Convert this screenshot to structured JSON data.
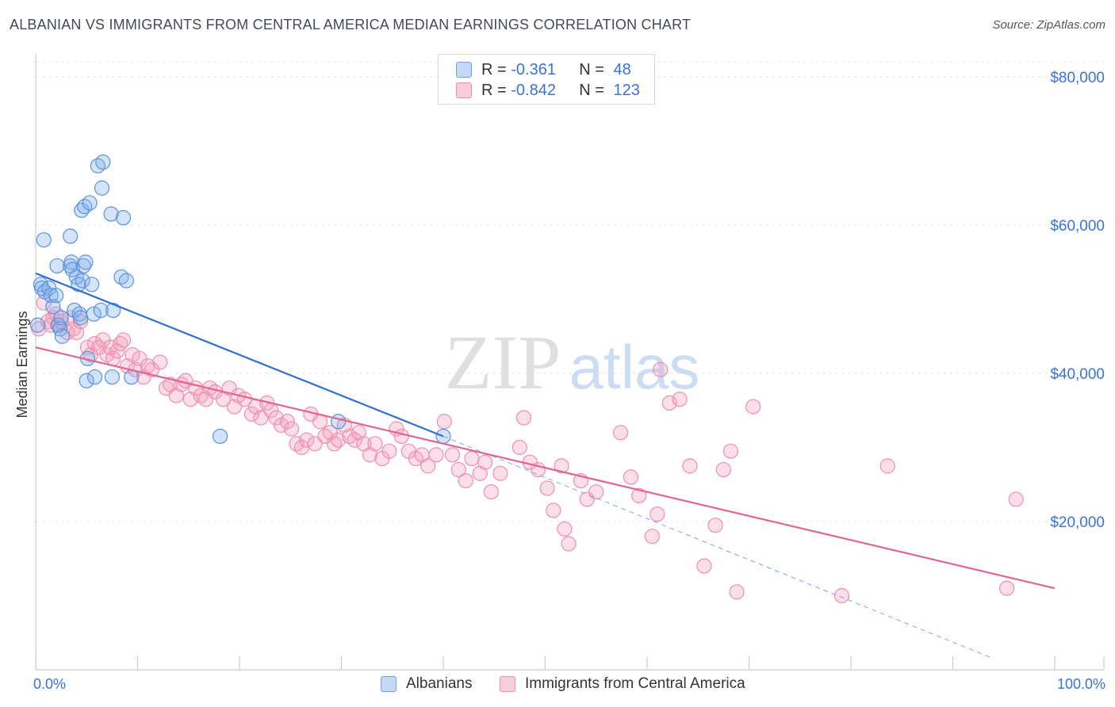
{
  "title": "ALBANIAN VS IMMIGRANTS FROM CENTRAL AMERICA MEDIAN EARNINGS CORRELATION CHART",
  "source": "Source: ZipAtlas.com",
  "watermark": {
    "zip": "ZIP",
    "atlas": "atlas"
  },
  "legend_stats": [
    {
      "r_label": "R = ",
      "r_value": "-0.361",
      "n_label": "N = ",
      "n_value": "48",
      "color": "#a9c8f3"
    },
    {
      "r_label": "R = ",
      "r_value": "-0.842",
      "n_label": "N = ",
      "n_value": "123",
      "color": "#f5b5c9"
    }
  ],
  "bottom_legend": [
    {
      "label": "Albanians",
      "color": "#a9c8f3"
    },
    {
      "label": "Immigrants from Central America",
      "color": "#f5b5c9"
    }
  ],
  "colors": {
    "blue": "#5a92dd",
    "blue_line": "#2e6fd4",
    "pink": "#ee8fb0",
    "pink_line": "#e06590",
    "axis_text": "#3a72d8"
  },
  "chart_data": {
    "type": "scatter",
    "title": "ALBANIAN VS IMMIGRANTS FROM CENTRAL AMERICA MEDIAN EARNINGS CORRELATION CHART",
    "xlabel": "",
    "ylabel": "Median Earnings",
    "xlim": [
      0,
      100
    ],
    "ylim": [
      0,
      80000
    ],
    "x_tick_labels": [
      "0.0%",
      "100.0%"
    ],
    "y_ticks": [
      20000,
      40000,
      60000,
      80000
    ],
    "y_tick_labels": [
      "$20,000",
      "$40,000",
      "$60,000",
      "$80,000"
    ],
    "grid": true,
    "legend_position": "top-center",
    "series": [
      {
        "name": "Albanians",
        "trend": {
          "x0": 0,
          "y0": 53500,
          "x1": 40,
          "y1": 31500,
          "dashed_to_x": 94,
          "dashed_to_y": 1500
        },
        "points": [
          [
            0.2,
            46500
          ],
          [
            0.5,
            52000
          ],
          [
            0.6,
            51500
          ],
          [
            0.8,
            58000
          ],
          [
            0.9,
            51000
          ],
          [
            1.3,
            51500
          ],
          [
            1.5,
            50500
          ],
          [
            1.7,
            49000
          ],
          [
            2.0,
            50500
          ],
          [
            2.1,
            54500
          ],
          [
            2.2,
            46500
          ],
          [
            2.4,
            46000
          ],
          [
            2.5,
            47500
          ],
          [
            2.6,
            45000
          ],
          [
            3.4,
            54500
          ],
          [
            3.5,
            55000
          ],
          [
            3.4,
            58500
          ],
          [
            3.6,
            54000
          ],
          [
            3.8,
            48500
          ],
          [
            4.0,
            53000
          ],
          [
            4.2,
            52000
          ],
          [
            4.3,
            48000
          ],
          [
            4.4,
            47500
          ],
          [
            4.5,
            62000
          ],
          [
            4.6,
            52500
          ],
          [
            4.7,
            54500
          ],
          [
            4.8,
            62500
          ],
          [
            4.9,
            55000
          ],
          [
            5.0,
            39000
          ],
          [
            5.1,
            42000
          ],
          [
            5.3,
            63000
          ],
          [
            5.5,
            52000
          ],
          [
            5.7,
            48000
          ],
          [
            5.8,
            39500
          ],
          [
            6.1,
            68000
          ],
          [
            6.4,
            48500
          ],
          [
            6.5,
            65000
          ],
          [
            6.6,
            68500
          ],
          [
            7.4,
            61500
          ],
          [
            7.5,
            39500
          ],
          [
            7.6,
            48500
          ],
          [
            8.4,
            53000
          ],
          [
            8.6,
            61000
          ],
          [
            8.9,
            52500
          ],
          [
            9.4,
            39500
          ],
          [
            18.1,
            31500
          ],
          [
            29.7,
            33500
          ],
          [
            40.0,
            31500
          ]
        ]
      },
      {
        "name": "Immigrants from Central America",
        "trend": {
          "x0": 0,
          "y0": 43500,
          "x1": 100,
          "y1": 11000
        },
        "points": [
          [
            0.3,
            46000
          ],
          [
            0.8,
            49500
          ],
          [
            1.2,
            47000
          ],
          [
            1.5,
            46500
          ],
          [
            1.7,
            47500
          ],
          [
            2.0,
            48000
          ],
          [
            2.3,
            46500
          ],
          [
            2.5,
            47000
          ],
          [
            3.1,
            45500
          ],
          [
            3.4,
            47500
          ],
          [
            3.7,
            46000
          ],
          [
            4.0,
            45500
          ],
          [
            4.4,
            47000
          ],
          [
            5.1,
            43500
          ],
          [
            5.4,
            42500
          ],
          [
            5.8,
            44000
          ],
          [
            6.2,
            43500
          ],
          [
            6.6,
            44500
          ],
          [
            7.0,
            42500
          ],
          [
            7.3,
            43500
          ],
          [
            7.6,
            42000
          ],
          [
            8.0,
            43000
          ],
          [
            8.3,
            44000
          ],
          [
            8.6,
            44500
          ],
          [
            9.0,
            41000
          ],
          [
            9.5,
            42500
          ],
          [
            9.8,
            40500
          ],
          [
            10.2,
            42000
          ],
          [
            10.6,
            39500
          ],
          [
            11.0,
            41000
          ],
          [
            11.4,
            40500
          ],
          [
            12.2,
            41500
          ],
          [
            12.8,
            38000
          ],
          [
            13.2,
            38500
          ],
          [
            13.8,
            37000
          ],
          [
            14.3,
            38500
          ],
          [
            14.7,
            39000
          ],
          [
            15.2,
            36500
          ],
          [
            15.7,
            38000
          ],
          [
            16.2,
            37000
          ],
          [
            16.7,
            36500
          ],
          [
            17.1,
            38000
          ],
          [
            17.6,
            37500
          ],
          [
            18.4,
            36500
          ],
          [
            19.0,
            38000
          ],
          [
            19.5,
            35500
          ],
          [
            19.9,
            37000
          ],
          [
            20.5,
            36500
          ],
          [
            21.2,
            34500
          ],
          [
            21.6,
            35500
          ],
          [
            22.1,
            34000
          ],
          [
            22.7,
            36000
          ],
          [
            23.1,
            35000
          ],
          [
            23.6,
            34000
          ],
          [
            24.1,
            33000
          ],
          [
            24.7,
            33500
          ],
          [
            25.1,
            32500
          ],
          [
            25.6,
            30500
          ],
          [
            26.1,
            30000
          ],
          [
            26.6,
            31000
          ],
          [
            27.0,
            34500
          ],
          [
            27.4,
            30500
          ],
          [
            27.9,
            33500
          ],
          [
            28.4,
            31500
          ],
          [
            28.9,
            32000
          ],
          [
            29.3,
            30500
          ],
          [
            29.7,
            31000
          ],
          [
            30.3,
            33000
          ],
          [
            30.8,
            31500
          ],
          [
            31.3,
            31000
          ],
          [
            31.7,
            32000
          ],
          [
            32.2,
            30500
          ],
          [
            32.8,
            29000
          ],
          [
            33.3,
            30500
          ],
          [
            34.0,
            28500
          ],
          [
            34.7,
            29500
          ],
          [
            35.4,
            32500
          ],
          [
            35.9,
            31500
          ],
          [
            36.6,
            29500
          ],
          [
            37.3,
            28500
          ],
          [
            37.9,
            29000
          ],
          [
            38.5,
            27500
          ],
          [
            39.3,
            29000
          ],
          [
            40.1,
            33500
          ],
          [
            40.9,
            29000
          ],
          [
            41.5,
            27000
          ],
          [
            42.2,
            25500
          ],
          [
            42.8,
            28500
          ],
          [
            43.6,
            26500
          ],
          [
            44.1,
            28000
          ],
          [
            44.7,
            24000
          ],
          [
            45.6,
            26500
          ],
          [
            47.5,
            30000
          ],
          [
            47.9,
            34000
          ],
          [
            48.5,
            28000
          ],
          [
            49.3,
            27000
          ],
          [
            50.2,
            24500
          ],
          [
            50.8,
            21500
          ],
          [
            51.6,
            27500
          ],
          [
            51.9,
            19000
          ],
          [
            52.3,
            17000
          ],
          [
            53.5,
            25500
          ],
          [
            54.1,
            23000
          ],
          [
            55.0,
            24000
          ],
          [
            57.4,
            32000
          ],
          [
            58.4,
            26000
          ],
          [
            59.2,
            23500
          ],
          [
            60.5,
            18000
          ],
          [
            61.0,
            21000
          ],
          [
            61.3,
            40500
          ],
          [
            62.2,
            36000
          ],
          [
            63.2,
            36500
          ],
          [
            64.2,
            27500
          ],
          [
            65.6,
            14000
          ],
          [
            66.7,
            19500
          ],
          [
            67.5,
            27000
          ],
          [
            68.2,
            29500
          ],
          [
            68.8,
            10500
          ],
          [
            70.4,
            35500
          ],
          [
            79.1,
            10000
          ],
          [
            83.6,
            27500
          ],
          [
            95.3,
            11000
          ],
          [
            96.2,
            23000
          ]
        ]
      }
    ]
  }
}
